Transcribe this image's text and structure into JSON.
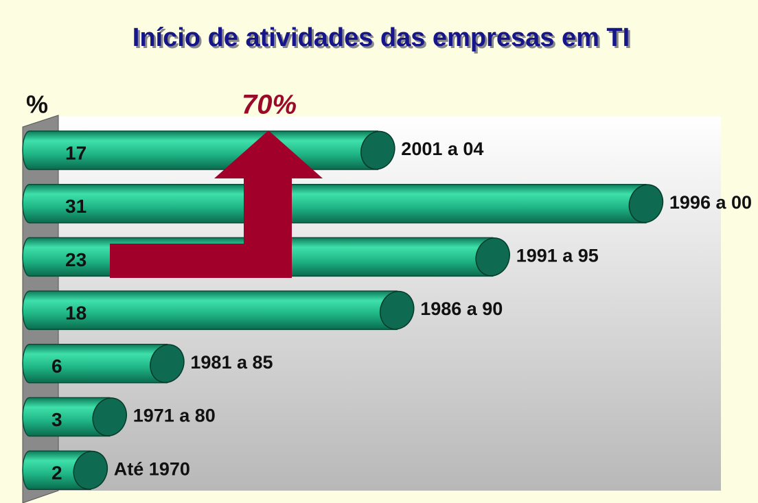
{
  "chart_data": {
    "type": "bar",
    "title": "Início de atividades das empresas em TI",
    "axis_label": "%",
    "annotation": "70%",
    "categories": [
      "2001 a 04",
      "1996 a 00",
      "1991 a 95",
      "1986 a 90",
      "1981 a 85",
      "1971 a 80",
      "Até 1970"
    ],
    "values": [
      17,
      31,
      23,
      18,
      6,
      3,
      2
    ],
    "color": "#1fb585"
  }
}
